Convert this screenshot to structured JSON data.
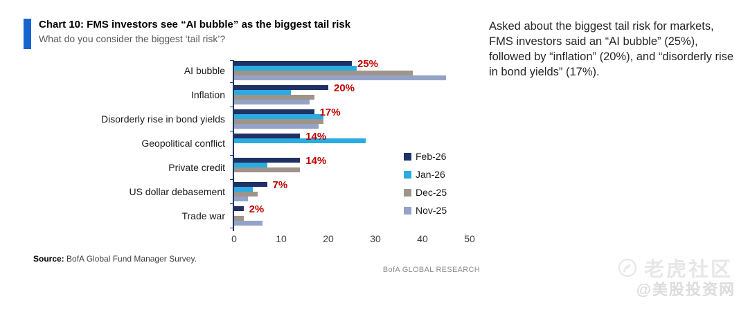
{
  "header": {
    "title": "Chart 10: FMS investors see “AI bubble” as the biggest tail risk",
    "subtitle": "What do you consider the biggest ‘tail risk’?"
  },
  "chart_data": {
    "type": "bar",
    "orientation": "horizontal",
    "title": "Chart 10: FMS investors see “AI bubble” as the biggest tail risk",
    "subtitle": "What do you consider the biggest ‘tail risk’?",
    "categories": [
      "AI bubble",
      "Inflation",
      "Disorderly rise in bond yields",
      "Geopolitical conflict",
      "Private credit",
      "US dollar debasement",
      "Trade war"
    ],
    "series": [
      {
        "name": "Feb-26",
        "color": "#1f3165",
        "values": [
          25,
          20,
          17,
          14,
          14,
          7,
          2
        ]
      },
      {
        "name": "Jan-26",
        "color": "#2aabe2",
        "values": [
          26,
          12,
          19,
          28,
          7,
          4,
          0
        ]
      },
      {
        "name": "Dec-25",
        "color": "#9e948a",
        "values": [
          38,
          17,
          19,
          0,
          14,
          5,
          2
        ]
      },
      {
        "name": "Nov-25",
        "color": "#94a2c8",
        "values": [
          45,
          16,
          18,
          0,
          0,
          3,
          6
        ]
      }
    ],
    "bar_labels": [
      "25%",
      "20%",
      "17%",
      "14%",
      "14%",
      "7%",
      "2%"
    ],
    "bar_label_color": "#c00000",
    "xlim": [
      0,
      50
    ],
    "x_ticks": [
      0,
      10,
      20,
      30,
      40,
      50
    ],
    "grid": false,
    "legend_position": "inside-right"
  },
  "commentary": {
    "text": "Asked about the biggest tail risk for markets, FMS investors said an “AI bubble” (25%), followed by “inflation” (20%), and “disorderly rise in bond yields” (17%)."
  },
  "footer": {
    "source_label": "Source:",
    "source_text": " BofA Global Fund Manager Survey.",
    "brand": "BofA GLOBAL RESEARCH"
  },
  "watermark": {
    "line1": "老虎社区",
    "line2": "@美股投资网",
    "icon": "tiger-community-logo"
  },
  "colors": {
    "accent_bar": "#1565d0",
    "axis": "#17365d",
    "value_label": "#c00000"
  }
}
